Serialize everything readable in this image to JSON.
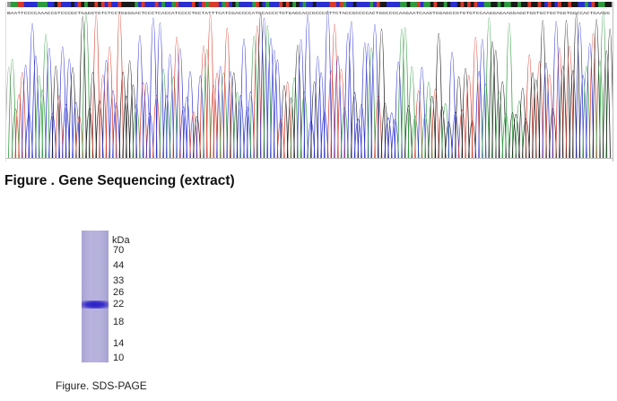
{
  "sequencing_figure": {
    "caption": "Figure . Gene Sequencing (extract)",
    "read_sequence": "BAATTCCCCAAACCGTCCCGCTGAGGTGTCTCCTGGGGACTCCCTCACCATCCCCTGCTATTTCATCGACCCCATGCACCCTGTGAGCACCGCCCCTTCTACCGCCCCACTGGCCCCAAGAATCAAGTGGAGCCGTGTGTCCAAGGAGAAGGAGGTGGTGCTGCTGGTGGCCACTGAAGG",
    "base_colors": {
      "A": "#2e9a3e",
      "C": "#2a2fd0",
      "G": "#1a1a1a",
      "T": "#d83a2a"
    }
  },
  "gel_figure": {
    "unit": "kDa",
    "markers": [
      "70",
      "44",
      "33",
      "26",
      "22",
      "18",
      "14",
      "10"
    ],
    "caption": "Figure. SDS-PAGE"
  }
}
